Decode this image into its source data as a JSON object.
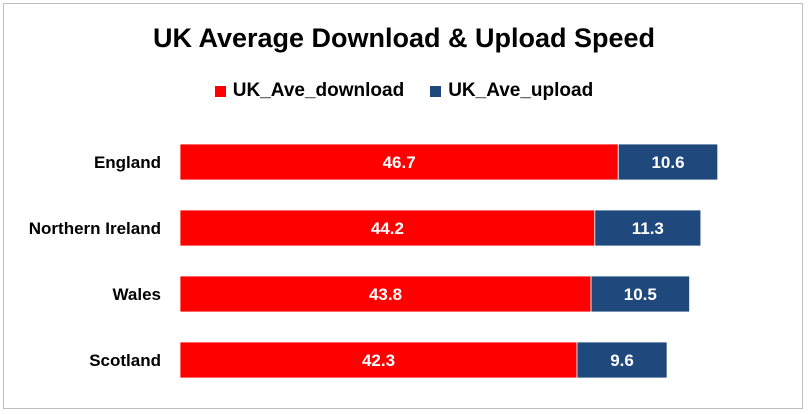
{
  "chart_data": {
    "type": "bar",
    "orientation": "horizontal",
    "stacked": true,
    "title": "UK Average Download & Upload Speed",
    "categories": [
      "England",
      "Northern Ireland",
      "Wales",
      "Scotland"
    ],
    "series": [
      {
        "name": "UK_Ave_download",
        "values": [
          46.7,
          44.2,
          43.8,
          42.3
        ],
        "color": "#ff0000"
      },
      {
        "name": "UK_Ave_upload",
        "values": [
          10.6,
          11.3,
          10.5,
          9.6
        ],
        "color": "#1f497d"
      }
    ],
    "xlim": [
      0,
      65
    ],
    "grid": false,
    "legend": "top",
    "data_labels": true
  }
}
